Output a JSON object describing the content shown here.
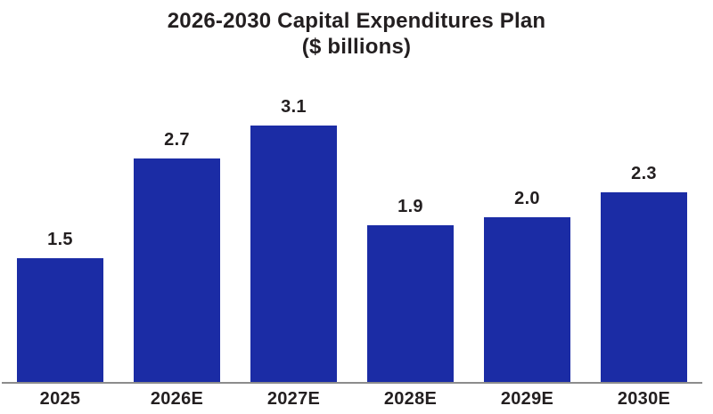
{
  "title": {
    "line1": "2026-2030 Capital Expenditures Plan",
    "line2": "($ billions)"
  },
  "chart_data": {
    "type": "bar",
    "title": "2026-2030 Capital Expenditures Plan ($ billions)",
    "categories": [
      "2025",
      "2026E",
      "2027E",
      "2028E",
      "2029E",
      "2030E"
    ],
    "values": [
      1.5,
      2.7,
      3.1,
      1.9,
      2.0,
      2.3
    ],
    "value_labels": [
      "1.5",
      "2.7",
      "3.1",
      "1.9",
      "2.0",
      "2.3"
    ],
    "xlabel": "",
    "ylabel": "",
    "ylim": [
      0,
      3.3
    ],
    "grid": false,
    "legend": null,
    "bar_color": "#1b2ca5",
    "axis_line_color": "#8c8c8c",
    "text_color": "#231f20",
    "background_color": "#ffffff"
  }
}
